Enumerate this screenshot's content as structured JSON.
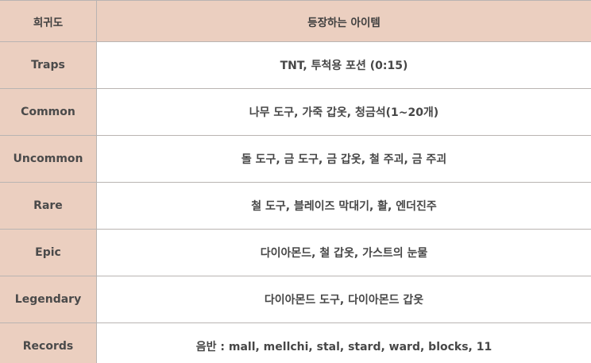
{
  "header": {
    "rarity_label": "희귀도",
    "items_label": "등장하는 아이템"
  },
  "rows": [
    {
      "rarity": "Traps",
      "items": "TNT, 투척용 포션 (0:15)"
    },
    {
      "rarity": "Common",
      "items": "나무 도구, 가죽 갑옷, 청금석(1~20개)"
    },
    {
      "rarity": "Uncommon",
      "items": "돌 도구, 금 도구, 금 갑옷, 철 주괴, 금 주괴"
    },
    {
      "rarity": "Rare",
      "items": "철 도구, 블레이즈 막대기, 활, 엔더진주"
    },
    {
      "rarity": "Epic",
      "items": "다이아몬드, 철 갑옷, 가스트의 눈물"
    },
    {
      "rarity": "Legendary",
      "items": "다이아몬드 도구, 다이아몬드 갑옷"
    },
    {
      "rarity": "Records",
      "items": "음반 : mall, mellchi, stal, stard, ward, blocks, 11"
    }
  ],
  "colors": {
    "header_bg": "#ebcfc0",
    "rarity_cell_bg": "#ebcfc0",
    "item_cell_bg": "#ffffff",
    "border": "#b9b4b2",
    "text": "#444444"
  }
}
